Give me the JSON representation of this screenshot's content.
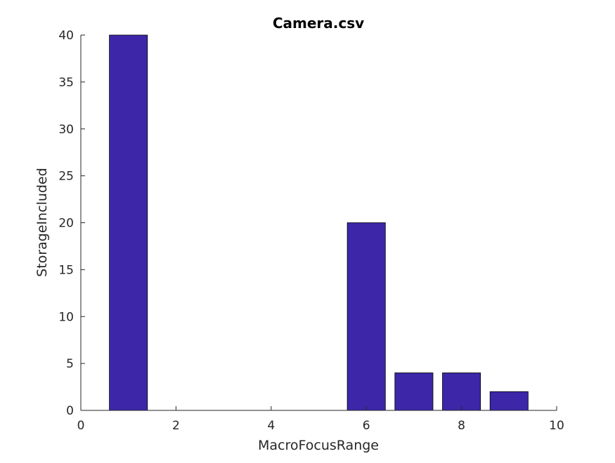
{
  "chart_data": {
    "type": "bar",
    "title": "Camera.csv",
    "xlabel": "MacroFocusRange",
    "ylabel": "StorageIncluded",
    "x": [
      1,
      2,
      3,
      4,
      5,
      6,
      7,
      8,
      9
    ],
    "values": [
      40,
      0,
      0,
      0,
      0,
      20,
      4,
      4,
      2
    ],
    "xlim": [
      0,
      10
    ],
    "ylim": [
      0,
      40
    ],
    "xticks": [
      0,
      2,
      4,
      6,
      8,
      10
    ],
    "yticks": [
      0,
      5,
      10,
      15,
      20,
      25,
      30,
      35,
      40
    ],
    "bar_width": 0.8,
    "bar_color": "#3d26a8",
    "grid": false
  }
}
